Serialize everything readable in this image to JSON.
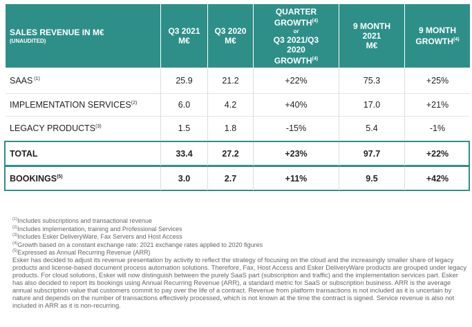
{
  "table": {
    "header": [
      {
        "lines": [
          {
            "text": "SALES REVENUE IN M€"
          },
          {
            "text": "(UNAUDITED)"
          }
        ]
      },
      {
        "lines": [
          {
            "text": "Q3 2021"
          },
          {
            "text": "M€"
          }
        ]
      },
      {
        "lines": [
          {
            "text": "Q3 2020"
          },
          {
            "text": "M€"
          }
        ]
      },
      {
        "lines": [
          {
            "text": "QUARTER"
          },
          {
            "text": "GROWTH",
            "sup": "(4)"
          },
          {
            "text": "or"
          },
          {
            "text": "Q3 2021/Q3"
          },
          {
            "text": "2020"
          },
          {
            "text": "GROWTH",
            "sup": "(4)"
          }
        ]
      },
      {
        "lines": [
          {
            "text": "9 MONTH"
          },
          {
            "text": "2021"
          },
          {
            "text": "M€"
          }
        ]
      },
      {
        "lines": [
          {
            "text": "9 MONTH"
          },
          {
            "text": "GROWTH",
            "sup": "(4)"
          }
        ]
      }
    ],
    "rows": [
      {
        "label": "SAAS",
        "sup": " (1)",
        "cells": [
          "25.9",
          "21.2",
          "+22%",
          "75.3",
          "+25%"
        ]
      },
      {
        "label": "IMPLEMENTATION SERVICES",
        "sup": "(2)",
        "cells": [
          "6.0",
          "4.2",
          "+40%",
          "17.0",
          "+21%"
        ]
      },
      {
        "label": "LEGACY PRODUCTS",
        "sup": "(3)",
        "cells": [
          "1.5",
          "1.8",
          "-15%",
          "5.4",
          "-1%"
        ]
      },
      {
        "label": "TOTAL",
        "cells": [
          "33.4",
          "27.2",
          "+23%",
          "97.7",
          "+22%"
        ]
      },
      {
        "label": "BOOKINGS",
        "sup": "(5)",
        "cells": [
          "3.0",
          "2.7",
          "+11%",
          "9.5",
          "+42%"
        ]
      }
    ]
  },
  "footnotes": [
    {
      "sup": "(1)",
      "text": "Includes subscriptions and transactional revenue"
    },
    {
      "sup": "(2)",
      "text": "Includes implementation, training and Professional Services"
    },
    {
      "sup": "(3)",
      "text": "Includes Esker DeliveryWare, Fax Servers and Host Access"
    },
    {
      "sup": "(4)",
      "text": "Growth based on a constant exchange rate: 2021 exchange rates applied to 2020 figures"
    },
    {
      "sup": "(5)",
      "text": "Expressed as Annual Recurring Revenue (ARR)"
    }
  ],
  "note": "Esker has decided to adjust its revenue presentation by activity to reflect the strategy of focusing on the cloud and the increasingly smaller share of legacy products and license-based document process automation solutions. Therefore, Fax, Host Access and Esker DeliveryWare products are grouped under legacy products. For cloud solutions, Esker will now distinguish between the purely SaaS part (subscription and traffic) and the implementation services part. Esker has also decided to report its bookings using Annual Recurring Revenue (ARR), a standard metric for SaaS or subscription business. ARR is the average annual subscription value that customers commit to pay over the life of a contract. Revenue from platform transactions is not included as it is uncertain by nature and depends on the number of transactions effectively processed, which is not known at the time the contract is signed. Service revenue is also not included in ARR as it is non-recurring."
}
